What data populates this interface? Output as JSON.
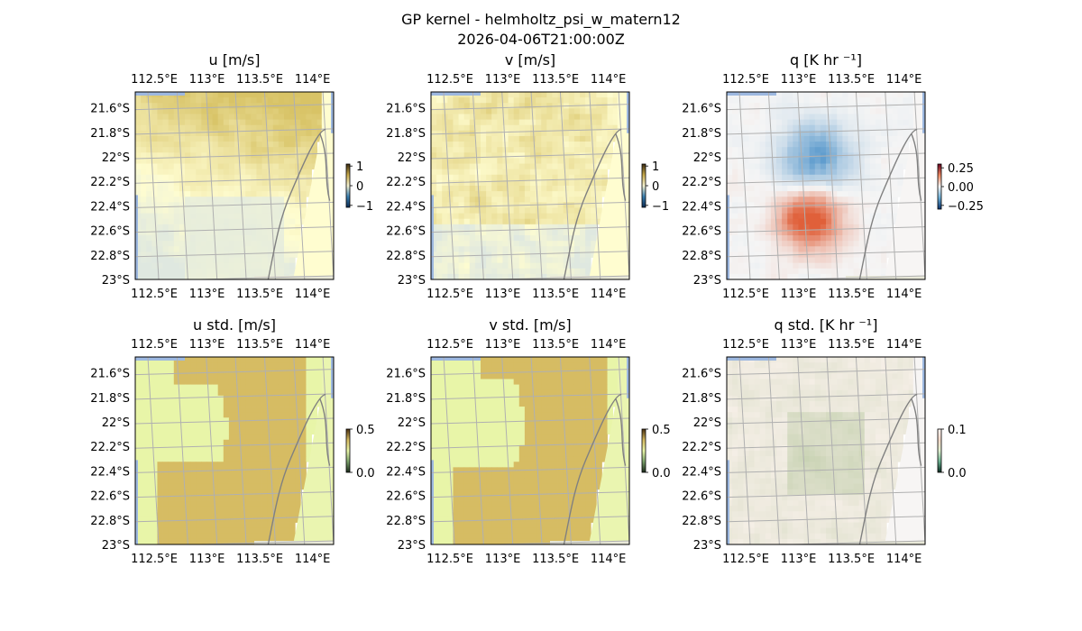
{
  "figure": {
    "title_line1": "GP kernel - helmholtz_psi_w_matern12",
    "title_line2": "2026-04-06T21:00:00Z"
  },
  "colors": {
    "land_shade": "#fffdd0",
    "ocean_edge": "#9db8e0",
    "grid": "#b0b0b0",
    "coastline": "#808080",
    "u_v_positive": "#d8c366",
    "u_v_negative": "#6aa8a8",
    "std_low": "#e8f5a8",
    "std_high": "#d4b860",
    "q_negative": "#4a90c8",
    "q_positive": "#e0603a",
    "q_neutral": "#f5f5f5",
    "qstd_low": "#fff5f2",
    "qstd_high": "#b8c8a0"
  },
  "chart_data": [
    {
      "type": "heatmap",
      "key": "u",
      "title": "u [m/s]",
      "xlim": [
        112.32,
        114.2
      ],
      "ylim": [
        -23.0,
        -21.47
      ],
      "xticks": [
        "112.5°E",
        "113°E",
        "113.5°E",
        "114°E"
      ],
      "xtick_values": [
        112.5,
        113.0,
        113.5,
        114.0
      ],
      "yticks": [
        "21.6°S",
        "21.8°S",
        "22°S",
        "22.2°S",
        "22.4°S",
        "22.6°S",
        "22.8°S",
        "23°S"
      ],
      "ytick_values": [
        -21.6,
        -21.8,
        -22.0,
        -22.2,
        -22.4,
        -22.6,
        -22.8,
        -23.0
      ],
      "colorbar": {
        "ticks": [
          "1",
          "0",
          "−1"
        ],
        "tick_values": [
          1,
          0,
          -1
        ],
        "range": [
          -1.1,
          1.1
        ]
      }
    },
    {
      "type": "heatmap",
      "key": "v",
      "title": "v [m/s]",
      "xlim": [
        112.32,
        114.2
      ],
      "ylim": [
        -23.0,
        -21.47
      ],
      "xticks": [
        "112.5°E",
        "113°E",
        "113.5°E",
        "114°E"
      ],
      "xtick_values": [
        112.5,
        113.0,
        113.5,
        114.0
      ],
      "yticks": [
        "21.6°S",
        "21.8°S",
        "22°S",
        "22.2°S",
        "22.4°S",
        "22.6°S",
        "22.8°S",
        "23°S"
      ],
      "ytick_values": [
        -21.6,
        -21.8,
        -22.0,
        -22.2,
        -22.4,
        -22.6,
        -22.8,
        -23.0
      ],
      "colorbar": {
        "ticks": [
          "1",
          "0",
          "−1"
        ],
        "tick_values": [
          1,
          0,
          -1
        ],
        "range": [
          -1.1,
          1.1
        ]
      }
    },
    {
      "type": "heatmap",
      "key": "q",
      "title": "q [K hr ⁻¹]",
      "xlim": [
        112.32,
        114.2
      ],
      "ylim": [
        -23.0,
        -21.47
      ],
      "xticks": [
        "112.5°E",
        "113°E",
        "113.5°E",
        "114°E"
      ],
      "xtick_values": [
        112.5,
        113.0,
        113.5,
        114.0
      ],
      "yticks": [
        "21.6°S",
        "21.8°S",
        "22°S",
        "22.2°S",
        "22.4°S",
        "22.6°S",
        "22.8°S",
        "23°S"
      ],
      "ytick_values": [
        -21.6,
        -21.8,
        -22.0,
        -22.2,
        -22.4,
        -22.6,
        -22.8,
        -23.0
      ],
      "colorbar": {
        "ticks": [
          "0.25",
          "0.00",
          "−0.25"
        ],
        "tick_values": [
          0.25,
          0.0,
          -0.25
        ],
        "range": [
          -0.3,
          0.3
        ]
      }
    },
    {
      "type": "heatmap",
      "key": "ustd",
      "title": "u std. [m/s]",
      "xlim": [
        112.32,
        114.2
      ],
      "ylim": [
        -23.0,
        -21.47
      ],
      "xticks": [
        "112.5°E",
        "113°E",
        "113.5°E",
        "114°E"
      ],
      "xtick_values": [
        112.5,
        113.0,
        113.5,
        114.0
      ],
      "yticks": [
        "21.6°S",
        "21.8°S",
        "22°S",
        "22.2°S",
        "22.4°S",
        "22.6°S",
        "22.8°S",
        "23°S"
      ],
      "ytick_values": [
        -21.6,
        -21.8,
        -22.0,
        -22.2,
        -22.4,
        -22.6,
        -22.8,
        -23.0
      ],
      "colorbar": {
        "ticks": [
          "0.5",
          "0.0"
        ],
        "tick_values": [
          0.5,
          0.0
        ],
        "range": [
          0.0,
          0.5
        ]
      }
    },
    {
      "type": "heatmap",
      "key": "vstd",
      "title": "v std. [m/s]",
      "xlim": [
        112.32,
        114.2
      ],
      "ylim": [
        -23.0,
        -21.47
      ],
      "xticks": [
        "112.5°E",
        "113°E",
        "113.5°E",
        "114°E"
      ],
      "xtick_values": [
        112.5,
        113.0,
        113.5,
        114.0
      ],
      "yticks": [
        "21.6°S",
        "21.8°S",
        "22°S",
        "22.2°S",
        "22.4°S",
        "22.6°S",
        "22.8°S",
        "23°S"
      ],
      "ytick_values": [
        -21.6,
        -21.8,
        -22.0,
        -22.2,
        -22.4,
        -22.6,
        -22.8,
        -23.0
      ],
      "colorbar": {
        "ticks": [
          "0.5",
          "0.0"
        ],
        "tick_values": [
          0.5,
          0.0
        ],
        "range": [
          0.0,
          0.5
        ]
      }
    },
    {
      "type": "heatmap",
      "key": "qstd",
      "title": "q std. [K hr ⁻¹]",
      "xlim": [
        112.32,
        114.2
      ],
      "ylim": [
        -23.0,
        -21.47
      ],
      "xticks": [
        "112.5°E",
        "113°E",
        "113.5°E",
        "114°E"
      ],
      "xtick_values": [
        112.5,
        113.0,
        113.5,
        114.0
      ],
      "yticks": [
        "21.6°S",
        "21.8°S",
        "22°S",
        "22.2°S",
        "22.4°S",
        "22.6°S",
        "22.8°S",
        "23°S"
      ],
      "ytick_values": [
        -21.6,
        -21.8,
        -22.0,
        -22.2,
        -22.4,
        -22.6,
        -22.8,
        -23.0
      ],
      "colorbar": {
        "ticks": [
          "0.1",
          "0.0"
        ],
        "tick_values": [
          0.1,
          0.0
        ],
        "range": [
          0.0,
          0.1
        ]
      }
    }
  ]
}
